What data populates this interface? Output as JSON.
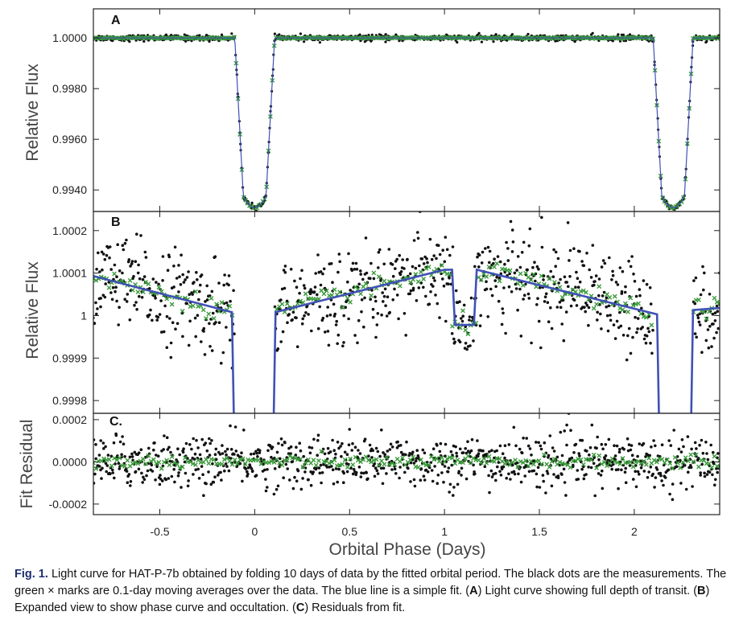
{
  "chart_data": [
    {
      "panel_label": "A",
      "type": "scatter",
      "xlim": [
        -0.85,
        2.45
      ],
      "ylim": [
        0.99315,
        1.00115
      ],
      "ylabel": "Relative Flux",
      "yticks": [
        1.0,
        0.998,
        0.996,
        0.994
      ],
      "ytick_labels": [
        "1.0000",
        "0.9980",
        "0.9960",
        "0.9940"
      ],
      "transit_centers": [
        0.0,
        2.2047
      ],
      "transit_depth": 0.0067,
      "series": [
        {
          "role": "measurements",
          "color": "#111111",
          "marker": "dot"
        },
        {
          "role": "moving_average",
          "color": "#3a9a3a",
          "marker": "x"
        },
        {
          "role": "fit",
          "color": "#3f51b5",
          "marker": "line"
        }
      ],
      "grid": false
    },
    {
      "panel_label": "B",
      "type": "scatter",
      "xlim": [
        -0.85,
        2.45
      ],
      "ylim": [
        0.99977,
        1.000245
      ],
      "ylabel": "Relative Flux",
      "yticks": [
        1.0002,
        1.0001,
        1.0,
        0.9999,
        0.9998
      ],
      "ytick_labels": [
        "1.0002",
        "1.0001",
        "1",
        "0.9999",
        "0.9998"
      ],
      "fit_points": [
        {
          "x": -0.85,
          "y": 1.000093
        },
        {
          "x": -0.12,
          "y": 1.000008
        },
        {
          "x": 0.11,
          "y": 1.000008
        },
        {
          "x": 1.0,
          "y": 1.000108
        },
        {
          "x": 1.1,
          "y": 0.999978
        },
        {
          "x": 1.18,
          "y": 1.000108
        },
        {
          "x": 2.12,
          "y": 1.000003
        },
        {
          "x": 2.45,
          "y": 1.000018
        }
      ],
      "occultation": {
        "start": 1.04,
        "end": 1.17,
        "depth": 0.00013
      },
      "grid": false
    },
    {
      "panel_label": "C.",
      "type": "scatter",
      "xlim": [
        -0.85,
        2.45
      ],
      "ylim": [
        -0.00025,
        0.00023
      ],
      "ylabel": "Fit Residual",
      "yticks": [
        0.0002,
        0.0,
        -0.0002
      ],
      "ytick_labels": [
        "0.0002",
        "0.0000",
        "-0.0002"
      ],
      "xlabel": "Orbital Phase (Days)",
      "xticks": [
        -0.5,
        0,
        0.5,
        1,
        1.5,
        2
      ],
      "xtick_labels": [
        "-0.5",
        "0",
        "0.5",
        "1",
        "1.5",
        "2"
      ],
      "residual_scatter": 6e-05,
      "grid": false
    }
  ],
  "colors": {
    "measurements": "#111111",
    "moving_average": "#3a9a3a",
    "fit": "#3f51b5",
    "caption_label": "#1d2f6e"
  },
  "caption": {
    "label": "Fig. 1.",
    "text": "Light curve for HAT-P-7b obtained by folding 10 days of data by the fitted orbital period. The black dots are the measurements. The green × marks are 0.1-day moving averages over the data. The blue line is a simple fit. (",
    "a": "A",
    "a_text": ") Light curve showing full depth of transit. (",
    "b": "B",
    "b_text": ") Expanded view to show phase curve and occultation. (",
    "c": "C",
    "c_text": ") Residuals from fit."
  }
}
